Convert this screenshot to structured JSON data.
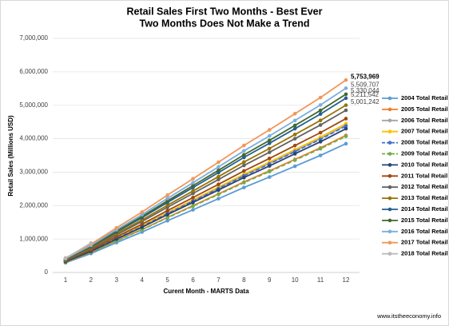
{
  "chart_data": {
    "type": "line",
    "title": "Retail Sales First Two Months - Best Ever",
    "subtitle": "Two Months Does Not Make a Trend",
    "x_label": "Curent Month - MARTS Data",
    "y_label": "Retail Sales (Millions USD)",
    "footer": "www.itstheeconomy.info",
    "x": [
      1,
      2,
      3,
      4,
      5,
      6,
      7,
      8,
      9,
      10,
      11,
      12
    ],
    "xlim": [
      1,
      12
    ],
    "xticks": [
      1,
      2,
      3,
      4,
      5,
      6,
      7,
      8,
      9,
      10,
      11,
      12
    ],
    "ylim": [
      0,
      7000000
    ],
    "yticks": [
      0,
      {
        "value": 1000000,
        "label": "1,000,000"
      },
      {
        "value": 2000000,
        "label": "2,000,000"
      },
      {
        "value": 3000000,
        "label": "3,000,000"
      },
      {
        "value": 4000000,
        "label": "4,000,000"
      },
      {
        "value": 5000000,
        "label": "5,000,000"
      },
      {
        "value": 6000000,
        "label": "6,000,000"
      },
      {
        "value": 7000000,
        "label": "7,000,000"
      }
    ],
    "grid": true,
    "legend": "right",
    "series": [
      {
        "name": "2004 Total Retail",
        "color": "#5b9bd5",
        "values": [
          289000,
          566000,
          893000,
          1209000,
          1548000,
          1875000,
          2206000,
          2541000,
          2853000,
          3176000,
          3500000,
          3850000
        ]
      },
      {
        "name": "2005 Total Retail",
        "color": "#ed7d31",
        "values": [
          308000,
          603000,
          951000,
          1287000,
          1648000,
          1997000,
          2349000,
          2706000,
          3038000,
          3383000,
          3727000,
          4100000
        ]
      },
      {
        "name": "2006 Total Retail",
        "color": "#a5a5a5",
        "values": [
          330000,
          647000,
          1021000,
          1382000,
          1769000,
          2143000,
          2521000,
          2904000,
          3260000,
          3630000,
          4000000,
          4400000
        ]
      },
      {
        "name": "2007 Total Retail",
        "color": "#ffc000",
        "values": [
          334000,
          654000,
          1032000,
          1397000,
          1789000,
          2167000,
          2550000,
          2937000,
          3297000,
          3671000,
          4045000,
          4450000
        ]
      },
      {
        "name": "2008 Total Retail",
        "color": "#4472c4",
        "dashed": true,
        "values": [
          329000,
          644000,
          1016000,
          1375000,
          1761000,
          2133000,
          2510000,
          2891000,
          3246000,
          3614000,
          3981000,
          4380000
        ]
      },
      {
        "name": "2009 Total Retail",
        "color": "#70ad47",
        "dashed": true,
        "values": [
          305000,
          598000,
          944000,
          1278000,
          1636000,
          1982000,
          2332000,
          2686000,
          3016000,
          3358000,
          3700000,
          4070000
        ]
      },
      {
        "name": "2010 Total Retail",
        "color": "#264478",
        "values": [
          323000,
          632000,
          998000,
          1350000,
          1729000,
          2094000,
          2464000,
          2838000,
          3186000,
          3548000,
          3909000,
          4300000
        ]
      },
      {
        "name": "2011 Total Retail",
        "color": "#9e480e",
        "values": [
          345000,
          676000,
          1067000,
          1444000,
          1849000,
          2240000,
          2636000,
          3036000,
          3409000,
          3795000,
          4181000,
          4600000
        ]
      },
      {
        "name": "2012 Total Retail",
        "color": "#636363",
        "values": [
          364000,
          713000,
          1125000,
          1523000,
          1950000,
          2362000,
          2779000,
          3201000,
          3594000,
          4001000,
          4409000,
          4850000
        ]
      },
      {
        "name": "2013 Total Retail",
        "color": "#997300",
        "values": [
          375000,
          735000,
          1160000,
          1570000,
          2010000,
          2436000,
          2866000,
          3301000,
          3706000,
          4126000,
          4546000,
          5001242
        ],
        "value_labels": [
          null,
          null,
          null,
          null,
          null,
          null,
          null,
          null,
          null,
          null,
          null,
          "5,001,242"
        ]
      },
      {
        "name": "2014 Total Retail",
        "color": "#255e91",
        "values": [
          391000,
          766000,
          1209000,
          1636000,
          2095000,
          2538000,
          2986000,
          3440000,
          3862000,
          4299000,
          4737000,
          5211542
        ],
        "value_labels": [
          null,
          null,
          null,
          null,
          null,
          null,
          null,
          null,
          null,
          null,
          null,
          "5,211,542"
        ]
      },
      {
        "name": "2015 Total Retail",
        "color": "#43682b",
        "values": [
          400000,
          784000,
          1237000,
          1674000,
          2143000,
          2596000,
          3054000,
          3518000,
          3950000,
          4397000,
          4845000,
          5330044
        ],
        "value_labels": [
          null,
          null,
          null,
          null,
          null,
          null,
          null,
          null,
          null,
          null,
          null,
          "5,330,044"
        ]
      },
      {
        "name": "2016 Total Retail",
        "color": "#7cafdd",
        "values": [
          413000,
          810000,
          1278000,
          1730000,
          2215000,
          2683000,
          3157000,
          3636000,
          4083000,
          4545000,
          5008000,
          5509707
        ],
        "value_labels": [
          null,
          null,
          null,
          null,
          null,
          null,
          null,
          null,
          null,
          null,
          null,
          "5,509,707"
        ]
      },
      {
        "name": "2017 Total Retail",
        "color": "#f1975a",
        "values": [
          432000,
          846000,
          1335000,
          1807000,
          2313000,
          2802000,
          3297000,
          3798000,
          4264000,
          4747000,
          5230000,
          5753969
        ],
        "value_labels": [
          null,
          null,
          null,
          null,
          null,
          null,
          null,
          null,
          null,
          null,
          null,
          "5,753,969"
        ]
      },
      {
        "name": "2018 Total Retail",
        "color": "#b7b7b7",
        "values": [
          420000,
          880000,
          null,
          null,
          null,
          null,
          null,
          null,
          null,
          null,
          null,
          null
        ]
      }
    ]
  }
}
